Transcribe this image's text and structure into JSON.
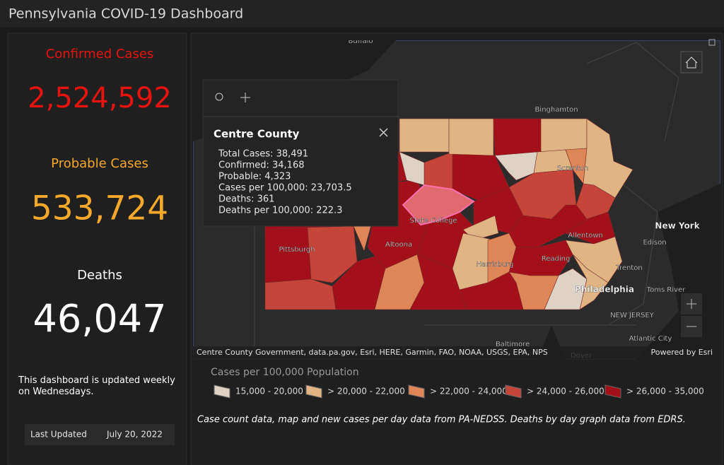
{
  "header": {
    "title": "Pennsylvania COVID-19 Dashboard"
  },
  "stats": [
    {
      "label": "Confirmed Cases",
      "value": "2,524,592"
    },
    {
      "label": "Probable Cases",
      "value": "533,724"
    },
    {
      "label": "Deaths",
      "value": "46,047"
    }
  ],
  "note": "This dashboard is updated weekly on Wednesdays.",
  "last_updated": {
    "label": "Last Updated",
    "value": "July 20, 2022"
  },
  "map": {
    "places": [
      "Buffalo",
      "Binghamton",
      "Scranton",
      "State College",
      "Pittsburgh",
      "Altoona",
      "Harrisburg",
      "Reading",
      "Allentown",
      "New York",
      "Edison",
      "Trenton",
      "Philadelphia",
      "Toms River",
      "NEW JERSEY",
      "Atlantic City",
      "Baltimore",
      "Dover"
    ],
    "popup": {
      "title": "Centre County",
      "lines": [
        "Total Cases: 38,491",
        "Confirmed: 34,168",
        "Probable: 4,323",
        "Cases per 100,000: 23,703.5",
        "Deaths: 361",
        "Deaths per 100,000: 222.3"
      ]
    },
    "attribution": "Centre County Government, data.pa.gov, Esri, HERE, Garmin, FAO, NOAA, USGS, EPA, NPS",
    "credit": "Powered by Esri"
  },
  "legend": {
    "title": "Cases per 100,000 Population",
    "items": [
      "15,000 - 20,000",
      "> 20,000 - 22,000",
      "> 22,000 - 24,000",
      "> 24,000 - 26,000",
      "> 26,000 - 35,000"
    ]
  },
  "footnote": "Case count data, map and new cases per day data from PA-NEDSS.  Deaths by day graph data from EDRS."
}
